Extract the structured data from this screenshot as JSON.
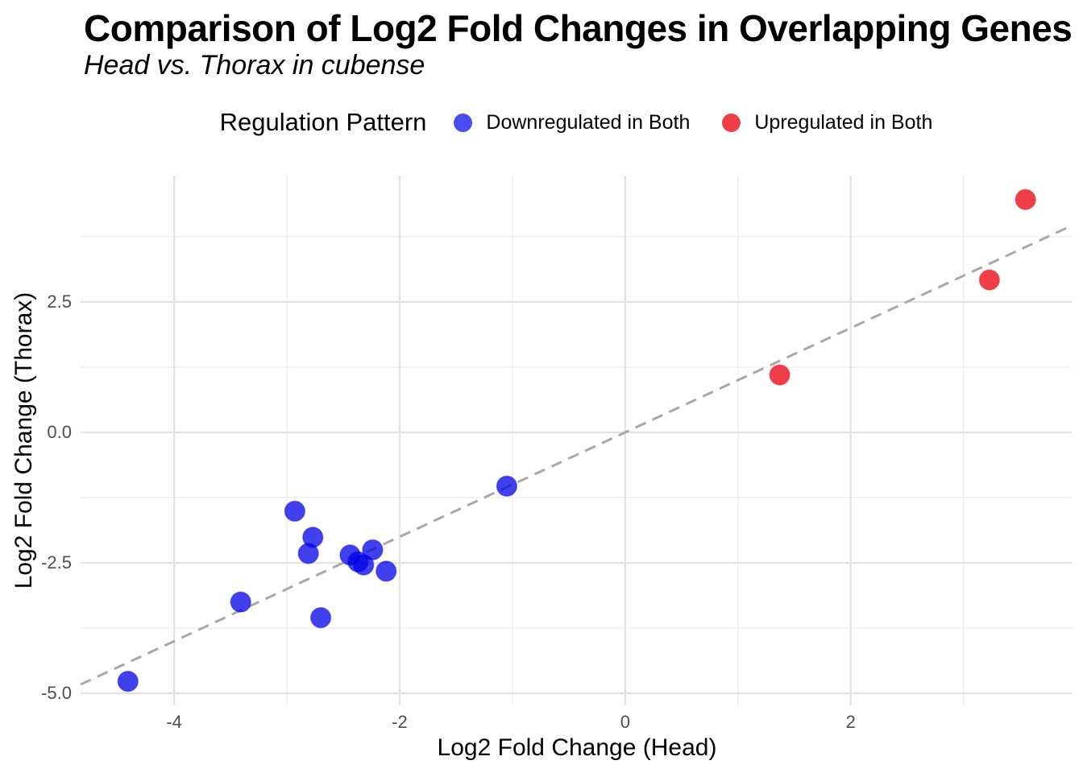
{
  "chart_data": {
    "type": "scatter",
    "title": "Comparison of Log2 Fold Changes in Overlapping Genes",
    "subtitle": "Head vs. Thorax in cubense",
    "xlabel": "Log2 Fold Change (Head)",
    "ylabel": "Log2 Fold Change (Thorax)",
    "xlim": [
      -4.83,
      3.96
    ],
    "ylim": [
      -5.23,
      4.92
    ],
    "grid": true,
    "x_ticks": [
      {
        "value": -4,
        "label": "-4"
      },
      {
        "value": -2,
        "label": "-2"
      },
      {
        "value": 0,
        "label": "0"
      },
      {
        "value": 2,
        "label": "2"
      }
    ],
    "y_ticks": [
      {
        "value": 2.5,
        "label": "2.5"
      },
      {
        "value": 0,
        "label": "0.0"
      },
      {
        "value": -2.5,
        "label": "-2.5"
      },
      {
        "value": -5,
        "label": "-5.0"
      }
    ],
    "x_minor_gridlines": [
      -3,
      -1,
      1,
      3
    ],
    "y_minor_gridlines": [
      3.75,
      1.25,
      -1.25,
      -3.75
    ],
    "reference_line": {
      "type": "identity y=x",
      "style": "dashed",
      "color": "#A8A8A8"
    },
    "legend": {
      "title": "Regulation Pattern",
      "position": "top-center",
      "entries": [
        {
          "label": "Downregulated in Both",
          "color": "#4B4BEF"
        },
        {
          "label": "Upregulated in Both",
          "color": "#F03E49"
        }
      ]
    },
    "series": [
      {
        "name": "Downregulated in Both",
        "color": "#0000E6",
        "opacity": 0.75,
        "points": [
          [
            -4.41,
            -4.77
          ],
          [
            -3.41,
            -3.25
          ],
          [
            -2.93,
            -1.51
          ],
          [
            -2.81,
            -2.32
          ],
          [
            -2.77,
            -2.01
          ],
          [
            -2.7,
            -3.55
          ],
          [
            -2.44,
            -2.35
          ],
          [
            -2.37,
            -2.48
          ],
          [
            -2.32,
            -2.54
          ],
          [
            -2.24,
            -2.25
          ],
          [
            -2.12,
            -2.66
          ],
          [
            -1.05,
            -1.03
          ]
        ]
      },
      {
        "name": "Upregulated in Both",
        "color": "#EB1420",
        "opacity": 0.82,
        "points": [
          [
            1.37,
            1.1
          ],
          [
            3.23,
            2.92
          ],
          [
            3.55,
            4.46
          ]
        ]
      }
    ]
  }
}
